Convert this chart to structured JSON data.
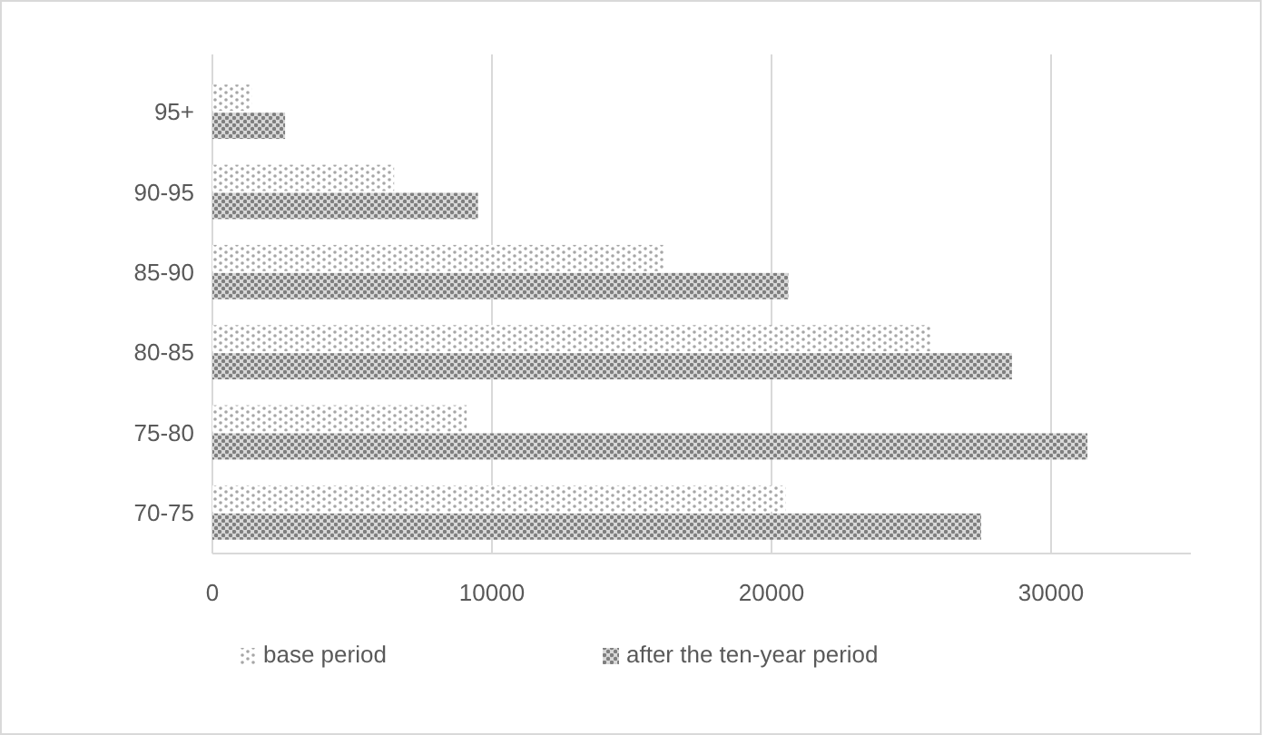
{
  "chart_data": {
    "type": "bar",
    "orientation": "horizontal",
    "categories": [
      "95+",
      "90-95",
      "85-90",
      "80-85",
      "75-80",
      "70-75"
    ],
    "series": [
      {
        "name": "base period",
        "color": "#a6a6a6",
        "values": [
          1400,
          6500,
          16200,
          25700,
          9100,
          20500
        ]
      },
      {
        "name": "after the ten-year period",
        "color": "#7f7f7f",
        "values": [
          2600,
          9500,
          20600,
          28600,
          31300,
          27500
        ]
      }
    ],
    "xlim": [
      0,
      35000
    ],
    "xticks": [
      0,
      10000,
      20000,
      30000
    ],
    "grid": "x",
    "legend": "bottom"
  }
}
